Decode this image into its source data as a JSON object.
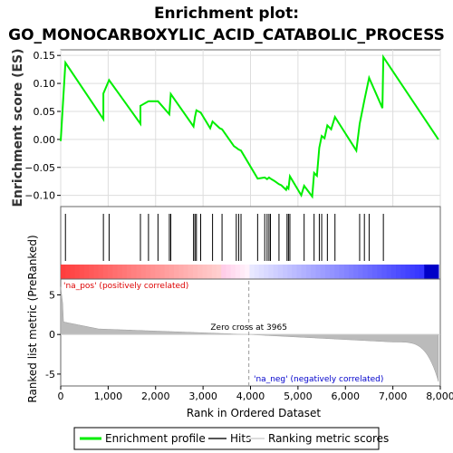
{
  "chart_data": {
    "type": "line",
    "title_line1": "Enrichment plot:",
    "title_line2": "GO_MONOCARBOXYLIC_ACID_CATABOLIC_PROCESS",
    "es_panel": {
      "ylabel": "Enrichment score (ES)",
      "ylim": [
        -0.12,
        0.16
      ],
      "yticks": [
        "0.15",
        "0.10",
        "0.05",
        "0.00",
        "−0.05",
        "−0.10"
      ],
      "ytick_values": [
        0.15,
        0.1,
        0.05,
        0.0,
        -0.05,
        -0.1
      ],
      "line_color": "#00ee00",
      "x": [
        0,
        100,
        900,
        900,
        1020,
        1680,
        1680,
        1850,
        2050,
        2290,
        2320,
        2800,
        2830,
        2860,
        2950,
        3150,
        3200,
        3350,
        3400,
        3650,
        3700,
        3750,
        3800,
        4150,
        4300,
        4350,
        4390,
        4420,
        4500,
        4600,
        4650,
        4750,
        4770,
        4800,
        4830,
        5070,
        5130,
        5300,
        5340,
        5400,
        5450,
        5500,
        5560,
        5620,
        5700,
        5780,
        6230,
        6300,
        6400,
        6500,
        6780,
        6800,
        7960
      ],
      "y": [
        -0.003,
        0.137,
        0.036,
        0.082,
        0.106,
        0.028,
        0.06,
        0.068,
        0.068,
        0.045,
        0.081,
        0.023,
        0.04,
        0.052,
        0.048,
        0.02,
        0.032,
        0.02,
        0.018,
        -0.012,
        -0.015,
        -0.018,
        -0.02,
        -0.07,
        -0.068,
        -0.071,
        -0.068,
        -0.07,
        -0.074,
        -0.08,
        -0.082,
        -0.09,
        -0.085,
        -0.088,
        -0.066,
        -0.1,
        -0.083,
        -0.102,
        -0.06,
        -0.065,
        -0.015,
        0.006,
        0.002,
        0.025,
        0.018,
        0.04,
        -0.02,
        0.028,
        0.07,
        0.11,
        0.056,
        0.147,
        0.0
      ]
    },
    "hits_panel": {
      "hit_positions": [
        100,
        900,
        1020,
        1680,
        1850,
        2050,
        2290,
        2320,
        2800,
        2830,
        2860,
        2950,
        3200,
        3400,
        3700,
        3750,
        3800,
        4150,
        4300,
        4350,
        4390,
        4420,
        4600,
        4770,
        4800,
        4830,
        5130,
        5340,
        5450,
        5500,
        5620,
        5780,
        6300,
        6400,
        6500,
        6800
      ]
    },
    "ranked_panel": {
      "ylabel": "Ranked list metric (PreRanked)",
      "ylim": [
        -6.5,
        7.0
      ],
      "yticks": [
        "5",
        "0",
        "-5"
      ],
      "ytick_values": [
        5,
        0,
        -5
      ],
      "zero_cross_label": "Zero cross at 3965",
      "zero_cross_x": 3965,
      "pos_label": "'na_pos' (positively correlated)",
      "neg_label": "'na_neg' (negatively correlated)",
      "pos_color": "#ff0000",
      "neg_color": "#0000ff"
    },
    "xlabel": "Rank in Ordered Dataset",
    "xlim": [
      0,
      8000
    ],
    "xticks": [
      "0",
      "1,000",
      "2,000",
      "3,000",
      "4,000",
      "5,000",
      "6,000",
      "7,000",
      "8,000"
    ],
    "xtick_values": [
      0,
      1000,
      2000,
      3000,
      4000,
      5000,
      6000,
      7000,
      8000
    ],
    "legend": {
      "items": [
        {
          "label": "Enrichment profile",
          "color": "#00ee00"
        },
        {
          "label": "Hits",
          "color": "#555555"
        },
        {
          "label": "Ranking metric scores",
          "color": "#bbbbbb"
        }
      ]
    }
  }
}
